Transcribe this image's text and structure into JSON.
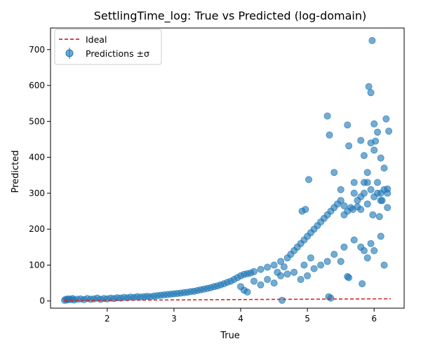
{
  "chart_data": {
    "type": "scatter",
    "title": "SettlingTime_log: True vs Predicted (log-domain)",
    "xlabel": "True",
    "ylabel": "Predicted",
    "xlim": [
      1.15,
      6.45
    ],
    "ylim": [
      -20,
      760
    ],
    "xticks": [
      2,
      3,
      4,
      5,
      6
    ],
    "yticks": [
      0,
      100,
      200,
      300,
      400,
      500,
      600,
      700
    ],
    "grid": false,
    "legend_position": "top-left",
    "colors": {
      "points": "#1f77b4",
      "ideal": "#d62728"
    },
    "series": [
      {
        "name": "Ideal",
        "kind": "line",
        "style": "dashed",
        "x": [
          1.35,
          6.25
        ],
        "y": [
          1.35,
          6.25
        ]
      },
      {
        "name": "Predictions ±σ",
        "kind": "scatter",
        "note_on_density": "",
        "points": [
          [
            1.36,
            2
          ],
          [
            1.38,
            5
          ],
          [
            1.4,
            3
          ],
          [
            1.42,
            6
          ],
          [
            1.45,
            4
          ],
          [
            1.48,
            7
          ],
          [
            1.5,
            3
          ],
          [
            1.55,
            5
          ],
          [
            1.6,
            6
          ],
          [
            1.65,
            4
          ],
          [
            1.7,
            7
          ],
          [
            1.75,
            5
          ],
          [
            1.8,
            6
          ],
          [
            1.85,
            8
          ],
          [
            1.9,
            5
          ],
          [
            1.95,
            7
          ],
          [
            2.0,
            6
          ],
          [
            2.05,
            8
          ],
          [
            2.1,
            7
          ],
          [
            2.15,
            9
          ],
          [
            2.2,
            8
          ],
          [
            2.25,
            10
          ],
          [
            2.3,
            9
          ],
          [
            2.35,
            11
          ],
          [
            2.4,
            10
          ],
          [
            2.45,
            12
          ],
          [
            2.5,
            11
          ],
          [
            2.55,
            12
          ],
          [
            2.6,
            13
          ],
          [
            2.65,
            12
          ],
          [
            2.7,
            14
          ],
          [
            2.75,
            15
          ],
          [
            2.8,
            16
          ],
          [
            2.85,
            17
          ],
          [
            2.9,
            18
          ],
          [
            2.95,
            19
          ],
          [
            3.0,
            20
          ],
          [
            3.05,
            21
          ],
          [
            3.1,
            22
          ],
          [
            3.15,
            23
          ],
          [
            3.2,
            24
          ],
          [
            3.25,
            26
          ],
          [
            3.3,
            27
          ],
          [
            3.35,
            29
          ],
          [
            3.4,
            31
          ],
          [
            3.45,
            33
          ],
          [
            3.5,
            35
          ],
          [
            3.55,
            37
          ],
          [
            3.6,
            40
          ],
          [
            3.65,
            42
          ],
          [
            3.7,
            45
          ],
          [
            3.75,
            48
          ],
          [
            3.8,
            52
          ],
          [
            3.85,
            55
          ],
          [
            3.9,
            60
          ],
          [
            3.95,
            65
          ],
          [
            4.0,
            70
          ],
          [
            4.05,
            74
          ],
          [
            4.1,
            76
          ],
          [
            4.15,
            78
          ],
          [
            4.2,
            82
          ],
          [
            4.3,
            88
          ],
          [
            4.4,
            94
          ],
          [
            4.5,
            100
          ],
          [
            4.55,
            80
          ],
          [
            4.6,
            110
          ],
          [
            4.65,
            95
          ],
          [
            4.7,
            120
          ],
          [
            4.75,
            130
          ],
          [
            4.8,
            140
          ],
          [
            4.85,
            150
          ],
          [
            4.9,
            160
          ],
          [
            4.95,
            170
          ],
          [
            5.0,
            180
          ],
          [
            5.05,
            190
          ],
          [
            5.1,
            200
          ],
          [
            5.15,
            210
          ],
          [
            5.2,
            220
          ],
          [
            5.25,
            230
          ],
          [
            5.3,
            240
          ],
          [
            5.35,
            250
          ],
          [
            5.4,
            260
          ],
          [
            5.45,
            270
          ],
          [
            5.5,
            280
          ],
          [
            5.55,
            240
          ],
          [
            5.6,
            250
          ],
          [
            5.65,
            260
          ],
          [
            5.7,
            300
          ],
          [
            5.75,
            280
          ],
          [
            5.8,
            290
          ],
          [
            5.85,
            300
          ],
          [
            5.9,
            270
          ],
          [
            5.95,
            310
          ],
          [
            6.0,
            290
          ],
          [
            6.05,
            300
          ],
          [
            6.1,
            280
          ],
          [
            6.15,
            310
          ],
          [
            6.2,
            300
          ],
          [
            4.0,
            40
          ],
          [
            4.05,
            30
          ],
          [
            4.1,
            25
          ],
          [
            4.2,
            55
          ],
          [
            4.3,
            45
          ],
          [
            4.4,
            60
          ],
          [
            4.5,
            50
          ],
          [
            4.6,
            70
          ],
          [
            4.62,
            2
          ],
          [
            4.7,
            75
          ],
          [
            4.8,
            80
          ],
          [
            4.9,
            60
          ],
          [
            4.95,
            100
          ],
          [
            5.0,
            70
          ],
          [
            5.05,
            120
          ],
          [
            5.1,
            90
          ],
          [
            5.2,
            100
          ],
          [
            5.3,
            110
          ],
          [
            5.32,
            12
          ],
          [
            5.35,
            8
          ],
          [
            5.4,
            130
          ],
          [
            5.5,
            110
          ],
          [
            5.55,
            150
          ],
          [
            5.6,
            68
          ],
          [
            5.62,
            65
          ],
          [
            5.7,
            170
          ],
          [
            5.8,
            150
          ],
          [
            5.82,
            48
          ],
          [
            5.85,
            140
          ],
          [
            5.9,
            120
          ],
          [
            5.95,
            160
          ],
          [
            6.0,
            140
          ],
          [
            6.1,
            180
          ],
          [
            6.15,
            100
          ],
          [
            6.2,
            260
          ],
          [
            4.92,
            250
          ],
          [
            4.97,
            255
          ],
          [
            5.02,
            338
          ],
          [
            5.3,
            515
          ],
          [
            5.33,
            462
          ],
          [
            5.4,
            358
          ],
          [
            5.5,
            310
          ],
          [
            5.6,
            490
          ],
          [
            5.62,
            432
          ],
          [
            5.7,
            330
          ],
          [
            5.8,
            447
          ],
          [
            5.85,
            405
          ],
          [
            5.9,
            358
          ],
          [
            5.92,
            597
          ],
          [
            5.95,
            580
          ],
          [
            5.97,
            725
          ],
          [
            6.0,
            493
          ],
          [
            6.02,
            445
          ],
          [
            6.05,
            470
          ],
          [
            6.1,
            398
          ],
          [
            6.15,
            370
          ],
          [
            6.18,
            507
          ],
          [
            6.22,
            473
          ],
          [
            5.8,
            255
          ],
          [
            5.85,
            330
          ],
          [
            5.9,
            330
          ],
          [
            5.95,
            440
          ],
          [
            6.0,
            420
          ],
          [
            6.05,
            330
          ],
          [
            6.1,
            300
          ],
          [
            6.2,
            312
          ],
          [
            5.98,
            240
          ],
          [
            6.08,
            235
          ],
          [
            6.12,
            280
          ],
          [
            5.75,
            262
          ],
          [
            5.68,
            255
          ],
          [
            5.55,
            265
          ]
        ]
      }
    ]
  }
}
